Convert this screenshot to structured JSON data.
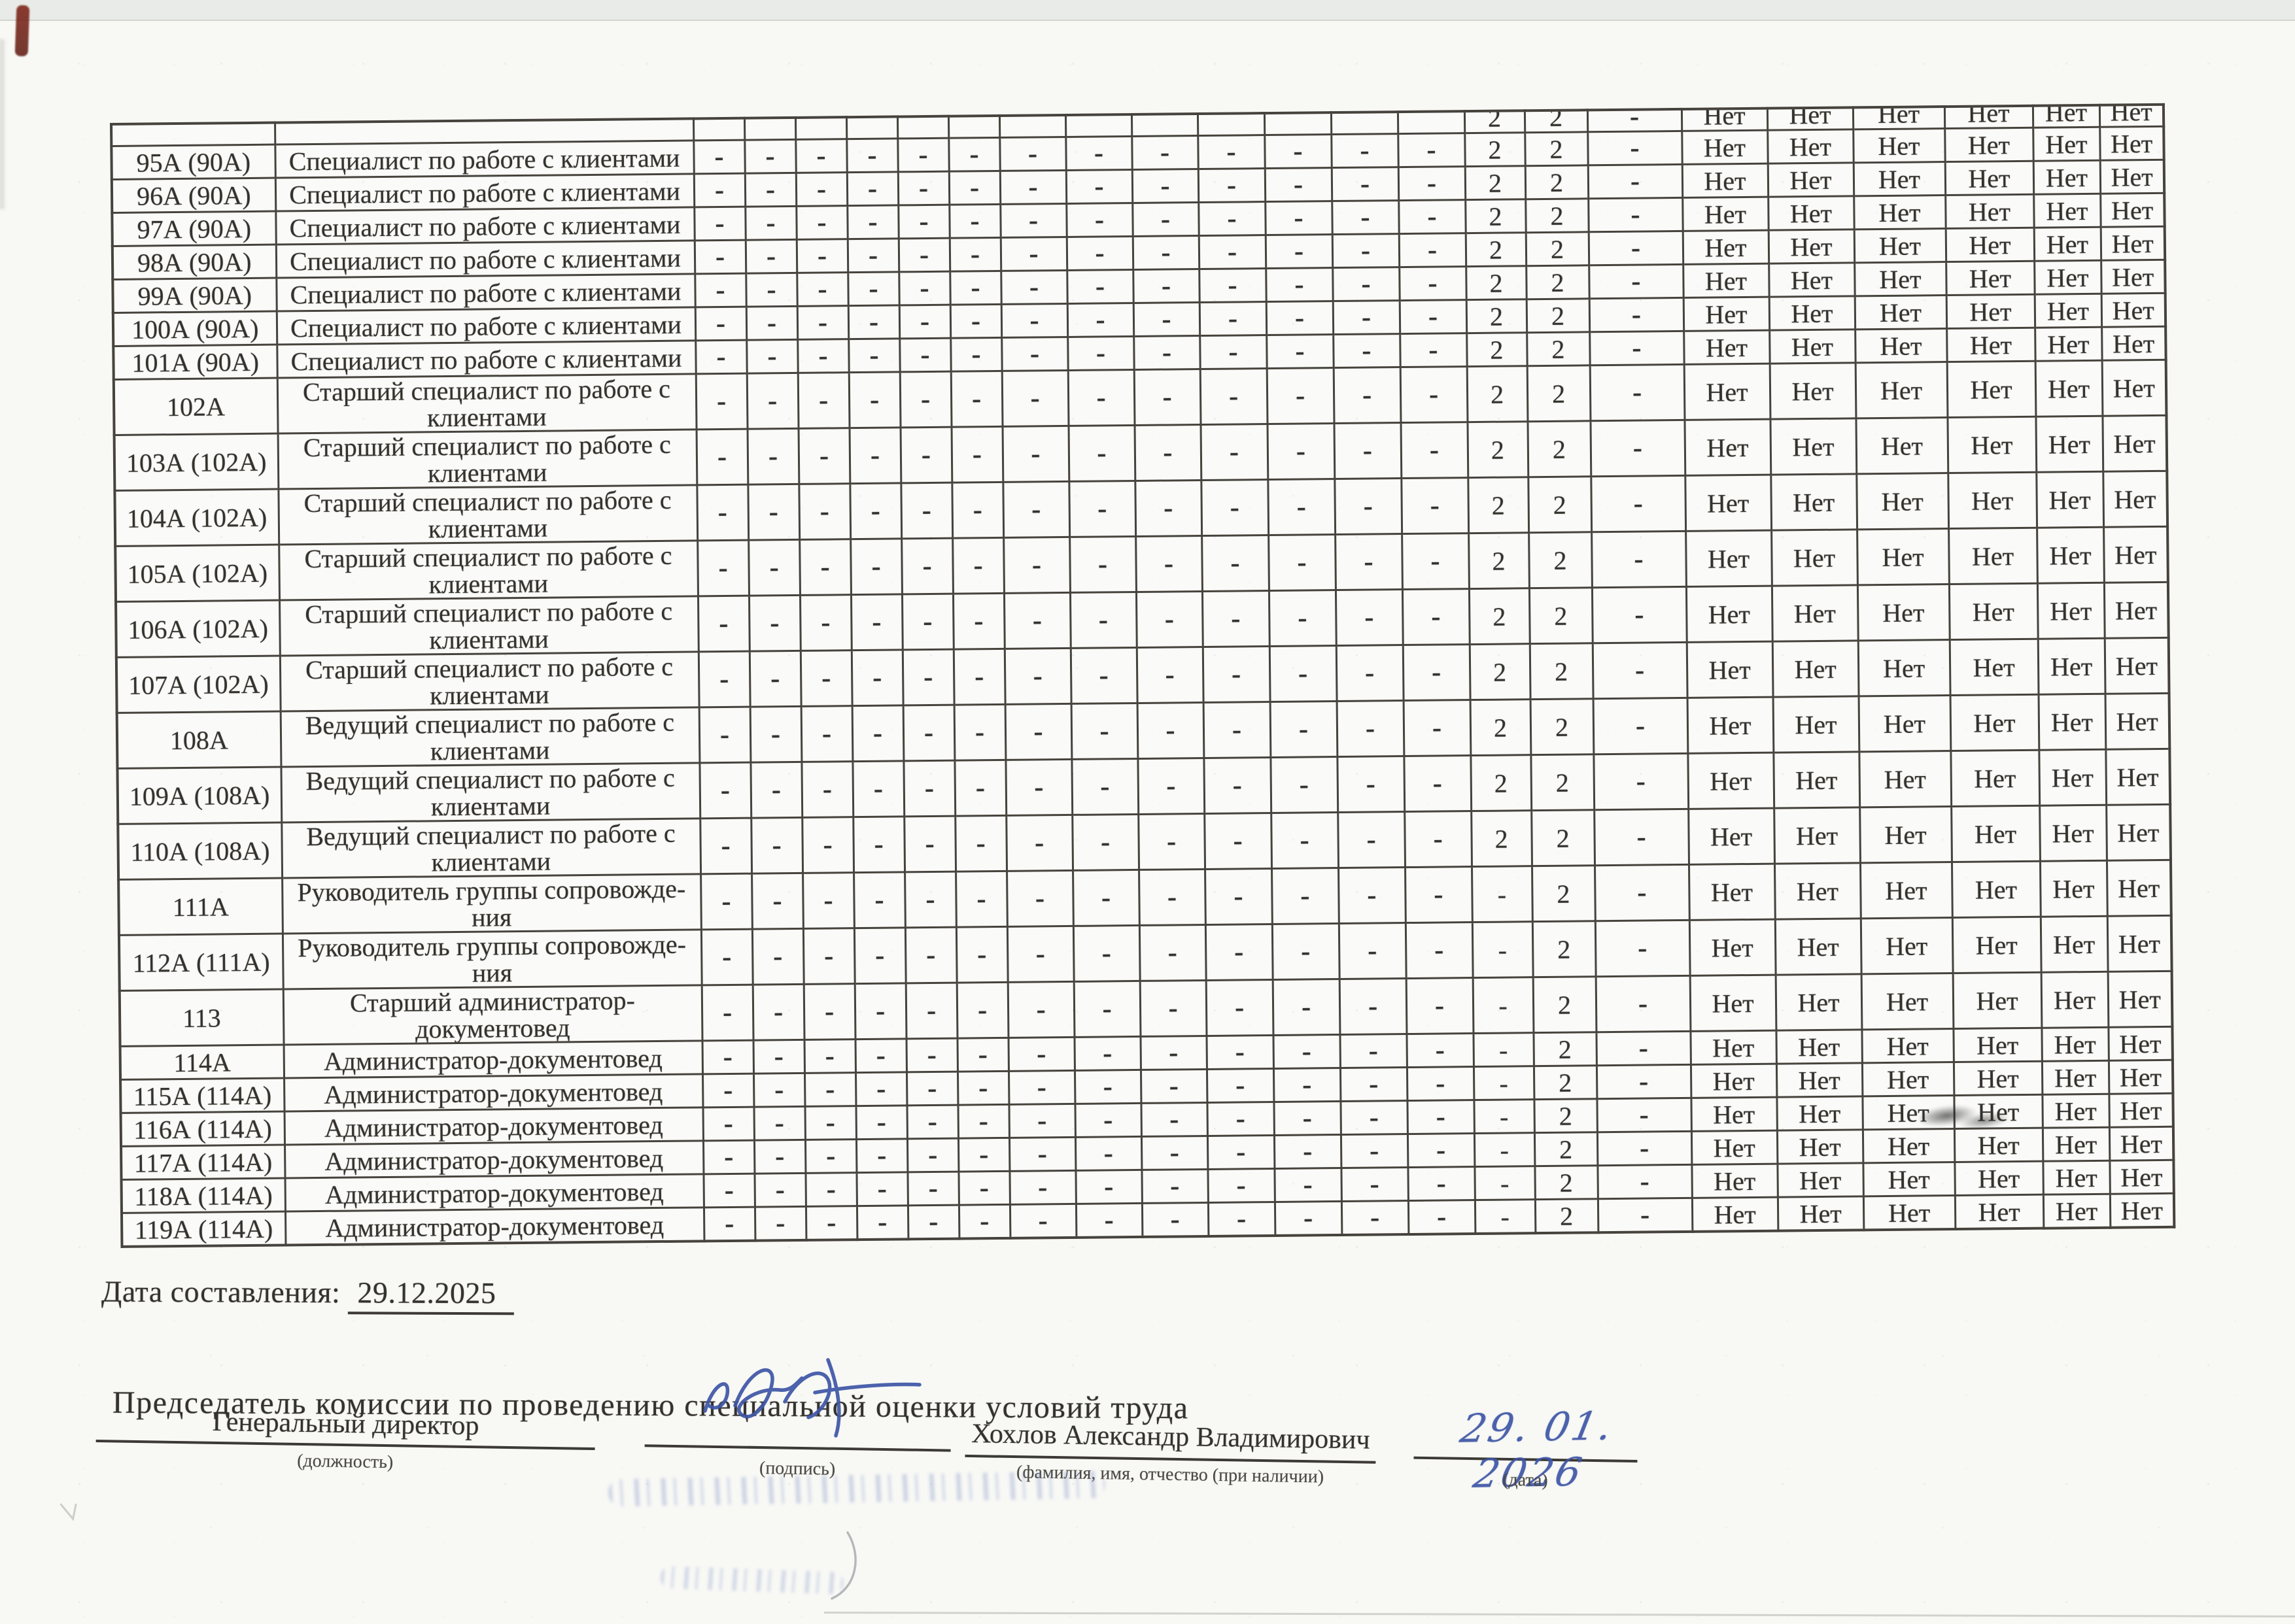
{
  "document": {
    "date_label": "Дата составления:",
    "date_value": "29.12.2025",
    "chairman_line": "Председатель комиссии по проведению специальной оценки условий труда",
    "signature_block": {
      "position_value": "Генеральный директор",
      "position_caption": "(должность)",
      "sign_caption": "(подпись)",
      "name_value": "Хохлов Александр Владимирович",
      "name_caption": "(фамилия, имя, отчество (при наличии)",
      "handwritten_date": "29. 01. 2026",
      "date_caption": "(дата)"
    }
  },
  "table": {
    "value_patterns": {
      "A": [
        "-",
        "-",
        "-",
        "-",
        "-",
        "-",
        "-",
        "-",
        "-",
        "-",
        "-",
        "-",
        "-",
        "2",
        "2",
        "-",
        "Нет",
        "Нет",
        "Нет",
        "Нет",
        "Нет",
        "Нет"
      ],
      "B": [
        "-",
        "-",
        "-",
        "-",
        "-",
        "-",
        "-",
        "-",
        "-",
        "-",
        "-",
        "-",
        "-",
        "-",
        "2",
        "-",
        "Нет",
        "Нет",
        "Нет",
        "Нет",
        "Нет",
        "Нет"
      ],
      "P": [
        "",
        "",
        "",
        "",
        "",
        "",
        "",
        "",
        "",
        "",
        "",
        "",
        "",
        "2",
        "2",
        "-",
        "Нет",
        "Нет",
        "Нет",
        "Нет",
        "Нет",
        "Нет"
      ]
    },
    "rows": [
      {
        "num": "",
        "title": "",
        "pattern": "P",
        "size": "partial"
      },
      {
        "num": "95А (90А)",
        "title": "Специалист по работе с клиентами",
        "pattern": "A",
        "size": "single"
      },
      {
        "num": "96А (90А)",
        "title": "Специалист по работе с клиентами",
        "pattern": "A",
        "size": "single"
      },
      {
        "num": "97А (90А)",
        "title": "Специалист по работе с клиентами",
        "pattern": "A",
        "size": "single"
      },
      {
        "num": "98А (90А)",
        "title": "Специалист по работе с клиентами",
        "pattern": "A",
        "size": "single"
      },
      {
        "num": "99А (90А)",
        "title": "Специалист по работе с клиентами",
        "pattern": "A",
        "size": "single"
      },
      {
        "num": "100А (90А)",
        "title": "Специалист по работе с клиентами",
        "pattern": "A",
        "size": "single"
      },
      {
        "num": "101А (90А)",
        "title": "Специалист по работе с клиентами",
        "pattern": "A",
        "size": "single"
      },
      {
        "num": "102А",
        "title": "Старший специалист по работе с\nклиентами",
        "pattern": "A",
        "size": "double"
      },
      {
        "num": "103А (102А)",
        "title": "Старший специалист по работе с\nклиентами",
        "pattern": "A",
        "size": "double"
      },
      {
        "num": "104А (102А)",
        "title": "Старший специалист по работе с\nклиентами",
        "pattern": "A",
        "size": "double"
      },
      {
        "num": "105А (102А)",
        "title": "Старший специалист по работе с\nклиентами",
        "pattern": "A",
        "size": "double"
      },
      {
        "num": "106А (102А)",
        "title": "Старший специалист по работе с\nклиентами",
        "pattern": "A",
        "size": "double"
      },
      {
        "num": "107А (102А)",
        "title": "Старший специалист по работе с\nклиентами",
        "pattern": "A",
        "size": "double"
      },
      {
        "num": "108А",
        "title": "Ведущий специалист по работе с\nклиентами",
        "pattern": "A",
        "size": "double"
      },
      {
        "num": "109А (108А)",
        "title": "Ведущий специалист по работе с\nклиентами",
        "pattern": "A",
        "size": "double"
      },
      {
        "num": "110А (108А)",
        "title": "Ведущий специалист по работе с\nклиентами",
        "pattern": "A",
        "size": "double"
      },
      {
        "num": "111А",
        "title": "Руководитель группы сопровожде-\nния",
        "pattern": "B",
        "size": "double"
      },
      {
        "num": "112А (111А)",
        "title": "Руководитель группы сопровожде-\nния",
        "pattern": "B",
        "size": "double"
      },
      {
        "num": "113",
        "title": "Старший администратор-\nдокументовед",
        "pattern": "B",
        "size": "double"
      },
      {
        "num": "114А",
        "title": "Администратор-документовед",
        "pattern": "B",
        "size": "single"
      },
      {
        "num": "115А (114А)",
        "title": "Администратор-документовед",
        "pattern": "B",
        "size": "single"
      },
      {
        "num": "116А (114А)",
        "title": "Администратор-документовед",
        "pattern": "B",
        "size": "single"
      },
      {
        "num": "117А (114А)",
        "title": "Администратор-документовед",
        "pattern": "B",
        "size": "single"
      },
      {
        "num": "118А (114А)",
        "title": "Администратор-документовед",
        "pattern": "B",
        "size": "single"
      },
      {
        "num": "119А (114А)",
        "title": "Администратор-документовед",
        "pattern": "B",
        "size": "single"
      }
    ]
  }
}
